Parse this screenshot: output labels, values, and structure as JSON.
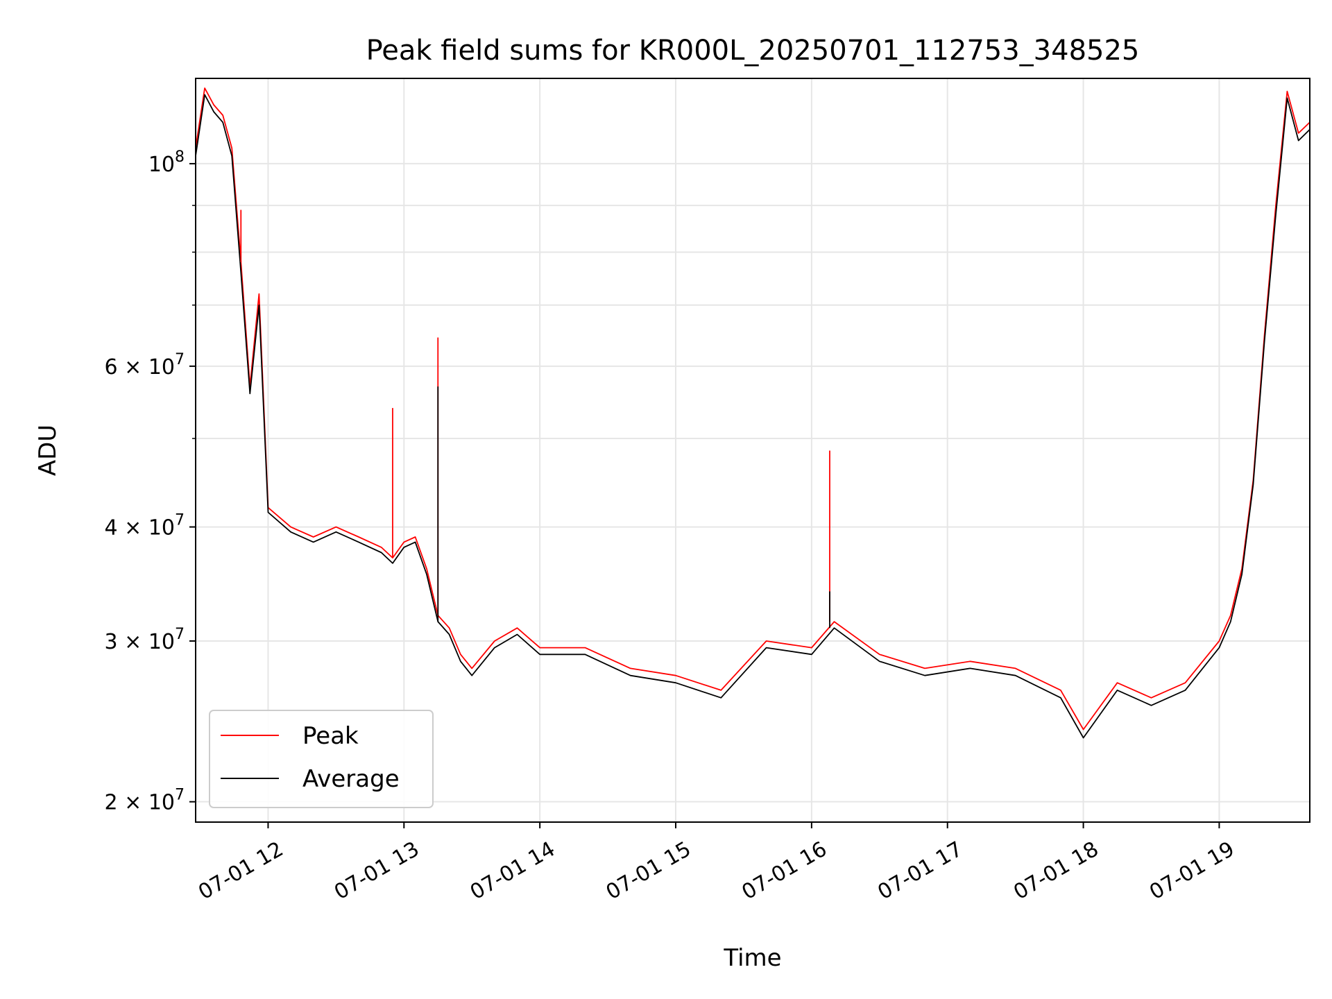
{
  "chart_data": {
    "type": "line",
    "title": "Peak field sums for KR000L_20250701_112753_348525",
    "xlabel": "Time",
    "ylabel": "ADU",
    "x_scale": "time",
    "y_scale": "log",
    "xlim": [
      "2025-07-01 11:28",
      "2025-07-01 19:40"
    ],
    "ylim": [
      19000000,
      124000000
    ],
    "grid": true,
    "legend_position": "lower left",
    "x_ticks": [
      {
        "value": "2025-07-01 12:00",
        "label": "07-01 12"
      },
      {
        "value": "2025-07-01 13:00",
        "label": "07-01 13"
      },
      {
        "value": "2025-07-01 14:00",
        "label": "07-01 14"
      },
      {
        "value": "2025-07-01 15:00",
        "label": "07-01 15"
      },
      {
        "value": "2025-07-01 16:00",
        "label": "07-01 16"
      },
      {
        "value": "2025-07-01 17:00",
        "label": "07-01 17"
      },
      {
        "value": "2025-07-01 18:00",
        "label": "07-01 18"
      },
      {
        "value": "2025-07-01 19:00",
        "label": "07-01 19"
      }
    ],
    "y_ticks": [
      {
        "value": 20000000,
        "mantissa": "2",
        "base": "10",
        "exp": "7"
      },
      {
        "value": 30000000,
        "mantissa": "3",
        "base": "10",
        "exp": "7"
      },
      {
        "value": 40000000,
        "mantissa": "4",
        "base": "10",
        "exp": "7"
      },
      {
        "value": 60000000,
        "mantissa": "6",
        "base": "10",
        "exp": "7"
      },
      {
        "value": 100000000,
        "mantissa": "",
        "base": "10",
        "exp": "8"
      }
    ],
    "y_minor_ticks": [
      50000000,
      70000000,
      80000000,
      90000000
    ],
    "x": [
      "2025-07-01 11:28",
      "2025-07-01 11:32",
      "2025-07-01 11:36",
      "2025-07-01 11:40",
      "2025-07-01 11:44",
      "2025-07-01 11:48",
      "2025-07-01 11:52",
      "2025-07-01 11:56",
      "2025-07-01 12:00",
      "2025-07-01 12:10",
      "2025-07-01 12:20",
      "2025-07-01 12:30",
      "2025-07-01 12:40",
      "2025-07-01 12:50",
      "2025-07-01 12:55",
      "2025-07-01 13:00",
      "2025-07-01 13:05",
      "2025-07-01 13:10",
      "2025-07-01 13:15",
      "2025-07-01 13:20",
      "2025-07-01 13:25",
      "2025-07-01 13:30",
      "2025-07-01 13:40",
      "2025-07-01 13:50",
      "2025-07-01 14:00",
      "2025-07-01 14:20",
      "2025-07-01 14:40",
      "2025-07-01 15:00",
      "2025-07-01 15:20",
      "2025-07-01 15:40",
      "2025-07-01 16:00",
      "2025-07-01 16:10",
      "2025-07-01 16:30",
      "2025-07-01 16:50",
      "2025-07-01 17:10",
      "2025-07-01 17:30",
      "2025-07-01 17:50",
      "2025-07-01 18:00",
      "2025-07-01 18:15",
      "2025-07-01 18:30",
      "2025-07-01 18:45",
      "2025-07-01 19:00",
      "2025-07-01 19:05",
      "2025-07-01 19:10",
      "2025-07-01 19:15",
      "2025-07-01 19:20",
      "2025-07-01 19:25",
      "2025-07-01 19:30",
      "2025-07-01 19:35",
      "2025-07-01 19:40"
    ],
    "series": [
      {
        "name": "Peak",
        "color": "#ff0000",
        "values": [
          104000000,
          121000000,
          116000000,
          113000000,
          104000000,
          78000000,
          57000000,
          72000000,
          42000000,
          40000000,
          39000000,
          40000000,
          39000000,
          38000000,
          37000000,
          38500000,
          39000000,
          36000000,
          32000000,
          31000000,
          29000000,
          28000000,
          30000000,
          31000000,
          29500000,
          29500000,
          28000000,
          27500000,
          26500000,
          30000000,
          29500000,
          31500000,
          29000000,
          28000000,
          28500000,
          28000000,
          26500000,
          24000000,
          27000000,
          26000000,
          27000000,
          30000000,
          32000000,
          36000000,
          45000000,
          65000000,
          90000000,
          120000000,
          108000000,
          111000000
        ]
      },
      {
        "name": "Average",
        "color": "#000000",
        "values": [
          102000000,
          119000000,
          114000000,
          111000000,
          102000000,
          76000000,
          56000000,
          70000000,
          41500000,
          39500000,
          38500000,
          39500000,
          38500000,
          37500000,
          36500000,
          38000000,
          38500000,
          35500000,
          31500000,
          30500000,
          28500000,
          27500000,
          29500000,
          30500000,
          29000000,
          29000000,
          27500000,
          27000000,
          26000000,
          29500000,
          29000000,
          31000000,
          28500000,
          27500000,
          28000000,
          27500000,
          26000000,
          23500000,
          26500000,
          25500000,
          26500000,
          29500000,
          31500000,
          35500000,
          44500000,
          64000000,
          88000000,
          118000000,
          106000000,
          109000000
        ]
      }
    ],
    "annotations": [
      {
        "series": "Peak",
        "x": "2025-07-01 11:48",
        "y": 89000000
      },
      {
        "series": "Peak",
        "x": "2025-07-01 12:55",
        "y": 54000000
      },
      {
        "series": "Peak",
        "x": "2025-07-01 13:15",
        "y": 64500000
      },
      {
        "series": "Average",
        "x": "2025-07-01 13:15",
        "y": 57000000
      },
      {
        "series": "Peak",
        "x": "2025-07-01 16:08",
        "y": 48500000
      },
      {
        "series": "Average",
        "x": "2025-07-01 16:08",
        "y": 34000000
      }
    ]
  }
}
